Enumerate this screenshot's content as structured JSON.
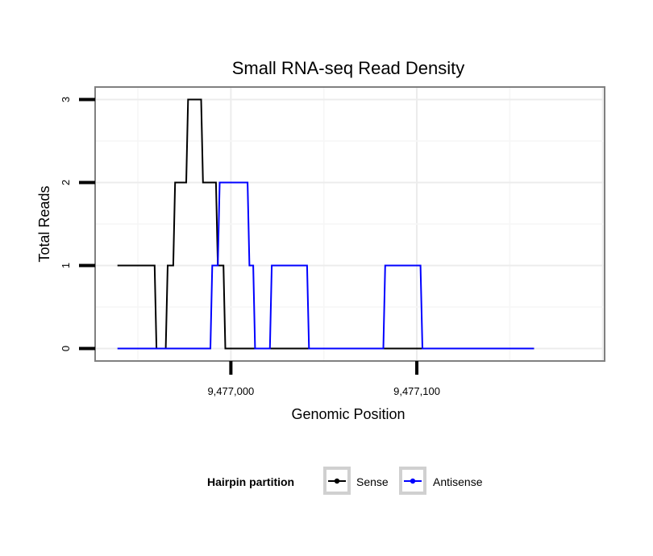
{
  "chart_data": {
    "type": "line",
    "title": "Small RNA-seq Read Density",
    "xlabel": "Genomic Position",
    "ylabel": "Total Reads",
    "xlim": [
      9476927,
      9477201
    ],
    "ylim": [
      -0.15,
      3.15
    ],
    "x_ticks": [
      {
        "value": 9477000,
        "label": "9,477,000"
      },
      {
        "value": 9477100,
        "label": "9,477,100"
      }
    ],
    "y_ticks": [
      {
        "value": 0,
        "label": "0"
      },
      {
        "value": 1,
        "label": "1"
      },
      {
        "value": 2,
        "label": "2"
      },
      {
        "value": 3,
        "label": "3"
      }
    ],
    "grid": true,
    "legend": {
      "title": "Hairpin partition",
      "position": "bottom"
    },
    "series": [
      {
        "name": "Sense",
        "color": "#000000",
        "x": [
          9476939,
          9476959,
          9476960,
          9476965,
          9476966,
          9476969,
          9476970,
          9476976,
          9476977,
          9476984,
          9476985,
          9476992,
          9476993,
          9476996,
          9476997,
          9477001,
          9477002,
          9477163
        ],
        "y": [
          1,
          1,
          0,
          0,
          1,
          1,
          2,
          2,
          3,
          3,
          2,
          2,
          1,
          1,
          0,
          0,
          0,
          0
        ]
      },
      {
        "name": "Antisense",
        "color": "#0000ff",
        "x": [
          9476939,
          9476989,
          9476990,
          9476993,
          9476994,
          9477009,
          9477010,
          9477012,
          9477013,
          9477021,
          9477022,
          9477041,
          9477042,
          9477082,
          9477083,
          9477102,
          9477103,
          9477163
        ],
        "y": [
          0,
          0,
          1,
          1,
          2,
          2,
          1,
          1,
          0,
          0,
          1,
          1,
          0,
          0,
          1,
          1,
          0,
          0
        ]
      }
    ]
  }
}
